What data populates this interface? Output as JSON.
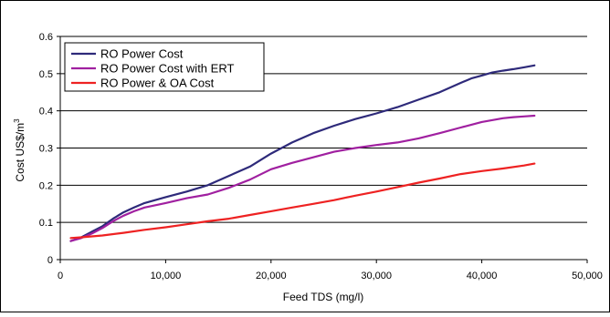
{
  "chart_data": {
    "type": "line",
    "title": "",
    "xlabel": "Feed TDS (mg/l)",
    "ylabel": "Cost US$/m",
    "ylabel_superscript": "3",
    "xlim": [
      0,
      50000
    ],
    "ylim": [
      0,
      0.6
    ],
    "x_ticks": [
      "0",
      "10,000",
      "20,000",
      "30,000",
      "40,000",
      "50,000"
    ],
    "y_ticks": [
      "0",
      "0.1",
      "0.2",
      "0.3",
      "0.4",
      "0.5",
      "0.6"
    ],
    "grid": "horizontal",
    "legend_position": "top-left",
    "series": [
      {
        "name": "RO Power Cost",
        "color": "#2e2a7a",
        "x": [
          1000,
          2000,
          3000,
          4000,
          5000,
          6000,
          7000,
          8000,
          10000,
          12000,
          14000,
          16000,
          18000,
          20000,
          22000,
          24000,
          26000,
          28000,
          30000,
          32000,
          34000,
          36000,
          38000,
          39000,
          40000,
          41000,
          42000,
          43000,
          44000,
          45000
        ],
        "values": [
          0.05,
          0.06,
          0.075,
          0.09,
          0.11,
          0.127,
          0.14,
          0.152,
          0.168,
          0.183,
          0.2,
          0.225,
          0.25,
          0.285,
          0.315,
          0.34,
          0.36,
          0.378,
          0.393,
          0.41,
          0.43,
          0.45,
          0.475,
          0.487,
          0.495,
          0.503,
          0.508,
          0.512,
          0.517,
          0.522
        ]
      },
      {
        "name": "RO Power Cost with ERT",
        "color": "#a020a0",
        "x": [
          1000,
          2000,
          3000,
          4000,
          5000,
          6000,
          7000,
          8000,
          10000,
          12000,
          14000,
          16000,
          18000,
          20000,
          22000,
          24000,
          26000,
          28000,
          30000,
          32000,
          34000,
          36000,
          38000,
          40000,
          42000,
          43000,
          44000,
          45000
        ],
        "values": [
          0.05,
          0.058,
          0.07,
          0.085,
          0.103,
          0.118,
          0.13,
          0.14,
          0.152,
          0.165,
          0.175,
          0.193,
          0.215,
          0.243,
          0.26,
          0.275,
          0.29,
          0.3,
          0.308,
          0.315,
          0.326,
          0.34,
          0.355,
          0.37,
          0.38,
          0.383,
          0.385,
          0.387
        ]
      },
      {
        "name": "RO Power & OA Cost",
        "color": "#ee2222",
        "x": [
          1000,
          2000,
          4000,
          6000,
          8000,
          10000,
          12000,
          14000,
          16000,
          18000,
          20000,
          22000,
          24000,
          26000,
          28000,
          30000,
          32000,
          34000,
          36000,
          38000,
          40000,
          42000,
          44000,
          45000
        ],
        "values": [
          0.058,
          0.06,
          0.065,
          0.072,
          0.08,
          0.087,
          0.095,
          0.103,
          0.11,
          0.12,
          0.13,
          0.14,
          0.15,
          0.16,
          0.172,
          0.183,
          0.195,
          0.207,
          0.218,
          0.23,
          0.238,
          0.245,
          0.253,
          0.258
        ]
      }
    ]
  }
}
